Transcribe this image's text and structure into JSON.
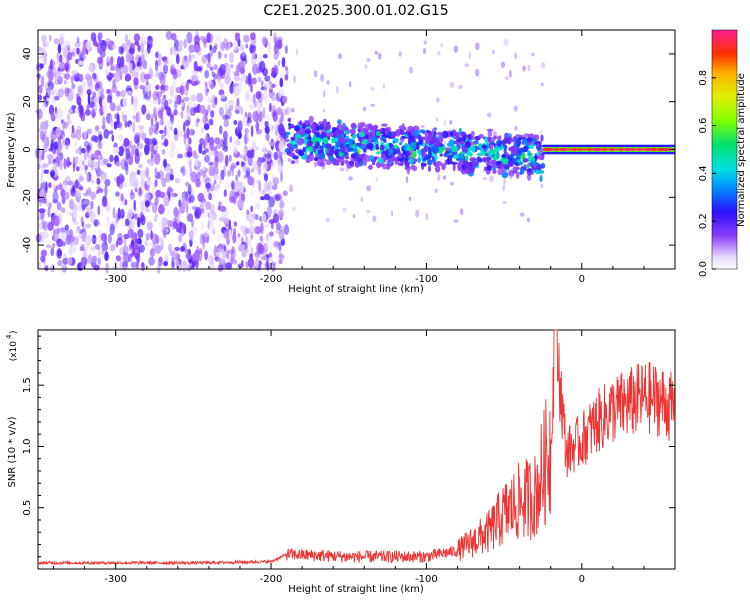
{
  "title": "C2E1.2025.300.01.02.G15",
  "colorbar": {
    "label": "Normalized spectral amplitude",
    "ticks": [
      "0.0",
      "0.2",
      "0.4",
      "0.6",
      "0.8"
    ],
    "tick_values": [
      0.0,
      0.2,
      0.4,
      0.6,
      0.8
    ],
    "range": [
      0,
      1
    ]
  },
  "chart_data": [
    {
      "type": "heatmap",
      "name": "spectrogram",
      "title": "C2E1.2025.300.01.02.G15",
      "xlabel": "Height of straight line (km)",
      "ylabel": "Frequency (Hz)",
      "xlim": [
        -350,
        60
      ],
      "ylim": [
        -50,
        50
      ],
      "xticks": [
        -300,
        -200,
        -100,
        0
      ],
      "xtick_labels": [
        "-300",
        "-200",
        "-100",
        "0"
      ],
      "yticks": [
        -40,
        -20,
        0,
        20,
        40
      ],
      "ytick_labels": [
        "-40",
        "-20",
        "0",
        "20",
        "40"
      ],
      "description_regions": [
        {
          "x_range": [
            -350,
            -190
          ],
          "freq_range": [
            -50,
            48
          ],
          "amplitude": 0.15
        },
        {
          "x_range": [
            -190,
            -25
          ],
          "freq_center_start": 4,
          "freq_center_end": -3,
          "amplitude": 0.35
        },
        {
          "x_range": [
            -25,
            60
          ],
          "freq_center": 0,
          "amplitude": 0.95
        }
      ]
    },
    {
      "type": "line",
      "name": "snr",
      "xlabel": "Height of straight line (km)",
      "ylabel": "SNR (10 * v/v)",
      "y_multiplier": "(x10",
      "y_multiplier_exp": "4",
      "y_multiplier_close": ")",
      "xlim": [
        -350,
        60
      ],
      "ylim": [
        0,
        1.95
      ],
      "xticks": [
        -300,
        -200,
        -100,
        0
      ],
      "xtick_labels": [
        "-300",
        "-200",
        "-100",
        "0"
      ],
      "yticks": [
        0.5,
        1.0,
        1.5
      ],
      "ytick_labels": [
        "0.5",
        "1.0",
        "1.5"
      ],
      "color": "#ee3333",
      "series": [
        {
          "name": "SNR",
          "x": [
            -350,
            -300,
            -250,
            -200,
            -190,
            -150,
            -100,
            -80,
            -60,
            -50,
            -40,
            -30,
            -20,
            -17,
            -10,
            0,
            10,
            20,
            30,
            40,
            50,
            60
          ],
          "values": [
            0.05,
            0.05,
            0.05,
            0.06,
            0.12,
            0.1,
            0.1,
            0.15,
            0.3,
            0.45,
            0.55,
            0.6,
            1.0,
            1.95,
            0.95,
            1.05,
            1.2,
            1.3,
            1.35,
            1.4,
            1.38,
            1.3
          ]
        }
      ]
    }
  ]
}
